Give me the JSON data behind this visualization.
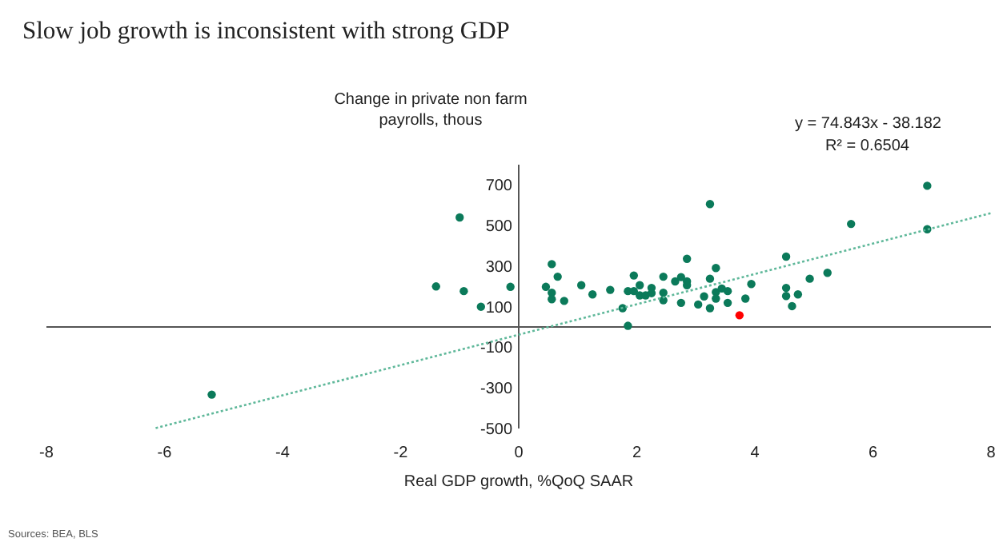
{
  "chart_data": {
    "type": "scatter",
    "title": "Slow job growth is inconsistent with strong GDP",
    "ylabel": "Change in private non farm payrolls, thous",
    "xlabel": "Real GDP growth, %QoQ SAAR",
    "xlim": [
      -8,
      8
    ],
    "xticks": [
      -8,
      -6,
      -4,
      -2,
      0,
      2,
      4,
      6,
      8
    ],
    "ylim": [
      -500,
      800
    ],
    "yticks": [
      700,
      500,
      300,
      100,
      -100,
      -300,
      -500
    ],
    "grid": false,
    "marker": "circle",
    "series": [
      {
        "color": "#0b7a5a",
        "x": [
          -5.2,
          -1.4,
          -1.0,
          -0.93,
          -0.64,
          -0.14,
          0.46,
          0.56,
          0.56,
          0.56,
          0.66,
          0.77,
          1.06,
          1.25,
          1.55,
          1.76,
          1.85,
          1.85,
          1.95,
          1.95,
          2.05,
          2.05,
          2.15,
          2.25,
          2.25,
          2.45,
          2.45,
          2.45,
          2.65,
          2.75,
          2.75,
          2.85,
          2.85,
          2.85,
          3.04,
          3.14,
          3.24,
          3.24,
          3.24,
          3.34,
          3.34,
          3.34,
          3.44,
          3.54,
          3.54,
          3.84,
          3.94,
          4.53,
          4.53,
          4.53,
          4.63,
          4.73,
          4.93,
          5.23,
          5.63,
          6.92,
          6.92
        ],
        "values": [
          -333,
          200,
          540,
          177,
          100,
          198,
          198,
          310,
          169,
          137,
          248,
          129,
          206,
          161,
          183,
          93,
          6,
          177,
          177,
          254,
          206,
          156,
          156,
          193,
          167,
          248,
          169,
          132,
          225,
          246,
          119,
          336,
          225,
          206,
          111,
          151,
          606,
          238,
          93,
          291,
          172,
          140,
          190,
          177,
          119,
          140,
          212,
          347,
          193,
          153,
          103,
          161,
          238,
          267,
          508,
          696,
          482
        ]
      },
      {
        "color": "#ff0000",
        "x": [
          3.74
        ],
        "values": [
          58
        ]
      },
      {
        "type": "line",
        "color": "#5fb89a",
        "line_style": "dotted",
        "marker": "none",
        "x": [
          -6.15,
          8
        ],
        "values": [
          -498,
          561
        ]
      }
    ],
    "annotations": [
      "y = 74.843x - 38.182",
      "R² = 0.6504",
      "Sources: BEA, BLS"
    ]
  }
}
